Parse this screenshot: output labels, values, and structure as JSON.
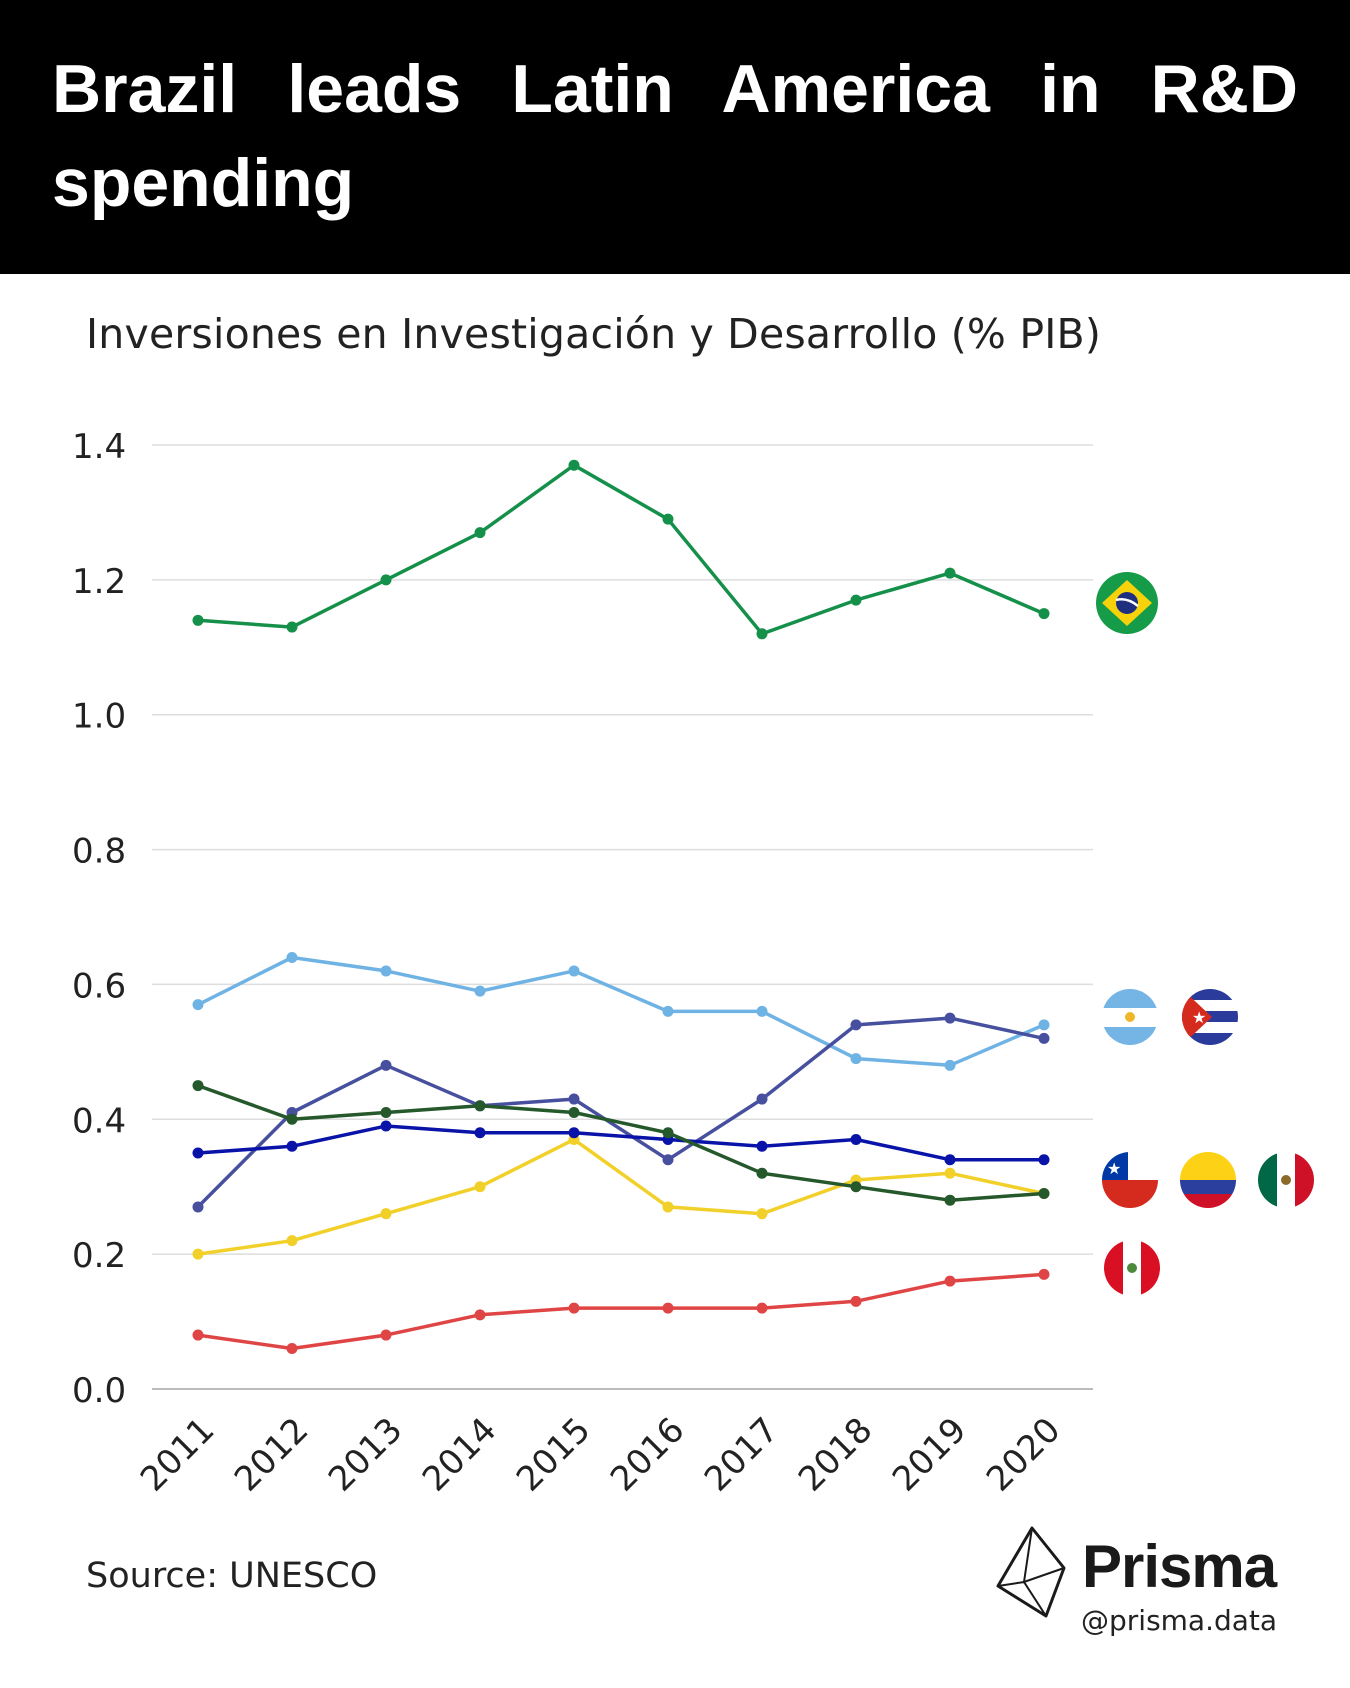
{
  "header": {
    "title": "Brazil leads Latin America in R&D spending"
  },
  "chart_data": {
    "type": "line",
    "title": "Inversiones en Investigación y Desarrollo (% PIB)",
    "xlabel": "",
    "ylabel": "",
    "categories": [
      "2011",
      "2012",
      "2013",
      "2014",
      "2015",
      "2016",
      "2017",
      "2018",
      "2019",
      "2020"
    ],
    "ylim": [
      0,
      1.4
    ],
    "yticks": [
      0.0,
      0.2,
      0.4,
      0.6,
      0.8,
      1.0,
      1.2,
      1.4
    ],
    "ytick_labels": [
      "0.0",
      "0.2",
      "0.4",
      "0.6",
      "0.8",
      "1.0",
      "1.2",
      "1.4"
    ],
    "grid": true,
    "legend": "flag icons at right end of lines",
    "series": [
      {
        "name": "Brazil",
        "color": "#15904a",
        "values": [
          1.14,
          1.13,
          1.2,
          1.27,
          1.37,
          1.29,
          1.12,
          1.17,
          1.21,
          1.15
        ]
      },
      {
        "name": "Argentina",
        "color": "#6fb2e4",
        "values": [
          0.57,
          0.64,
          0.62,
          0.59,
          0.62,
          0.56,
          0.56,
          0.49,
          0.48,
          0.54
        ]
      },
      {
        "name": "Cuba",
        "color": "#47509e",
        "values": [
          0.27,
          0.41,
          0.48,
          0.42,
          0.43,
          0.34,
          0.43,
          0.54,
          0.55,
          0.52
        ]
      },
      {
        "name": "Colombia",
        "color": "#f2d02a",
        "values": [
          0.2,
          0.22,
          0.26,
          0.3,
          0.37,
          0.27,
          0.26,
          0.31,
          0.32,
          0.29
        ]
      },
      {
        "name": "Chile",
        "color": "#0a13a8",
        "values": [
          0.35,
          0.36,
          0.39,
          0.38,
          0.38,
          0.37,
          0.36,
          0.37,
          0.34,
          0.34
        ]
      },
      {
        "name": "Mexico",
        "color": "#25582a",
        "values": [
          0.45,
          0.4,
          0.41,
          0.42,
          0.41,
          0.38,
          0.32,
          0.3,
          0.28,
          0.29
        ]
      },
      {
        "name": "Peru",
        "color": "#e04545",
        "values": [
          0.08,
          0.06,
          0.08,
          0.11,
          0.12,
          0.12,
          0.12,
          0.13,
          0.16,
          0.17
        ]
      }
    ]
  },
  "source": "Source: UNESCO",
  "brand": {
    "name": "Prisma",
    "handle": "@prisma.data"
  }
}
